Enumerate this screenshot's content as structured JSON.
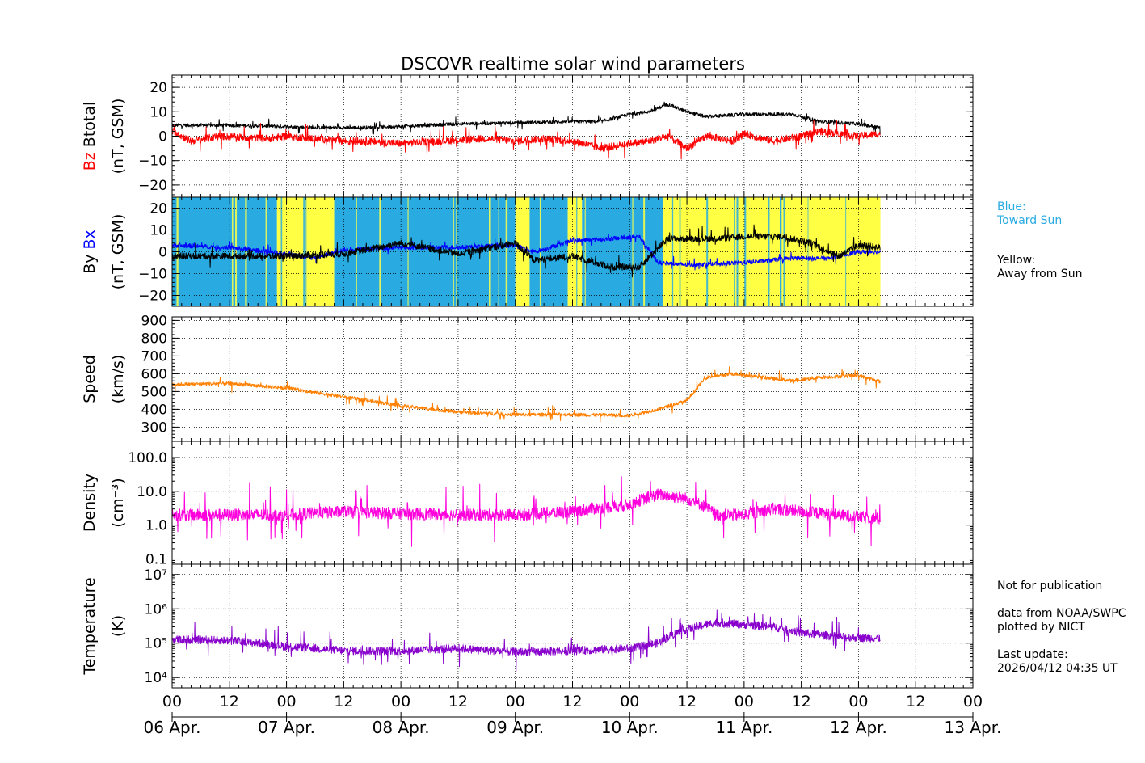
{
  "colors": {
    "bz": "#ff0000",
    "btotal": "#000000",
    "bx": "#0000ff",
    "by": "#000000",
    "toward_sun": "#29abe2",
    "away_sun": "#ffff44",
    "speed": "#ff8000",
    "density": "#ff00dd",
    "temperature": "#8800cc"
  },
  "notes": {
    "blue_title": "Blue:",
    "blue_text": "Toward Sun",
    "yellow_title": "Yellow:",
    "yellow_text": "Away from Sun",
    "not_for_pub": "Not for publication",
    "source1": "data from NOAA/SWPC",
    "source2": "plotted by NICT",
    "update_label": "Last update:",
    "update_time": "2026/04/12 04:35 UT"
  },
  "chart_data": {
    "type": "line",
    "title": "DSCOVR realtime solar wind parameters",
    "x_unit": "hours since 06 Apr. 00 UT",
    "x_range": [
      0,
      168
    ],
    "data_end_hour": 148.6,
    "hour_ticks": [
      {
        "h": 0,
        "label": "00"
      },
      {
        "h": 12,
        "label": "12"
      },
      {
        "h": 24,
        "label": "00"
      },
      {
        "h": 36,
        "label": "12"
      },
      {
        "h": 48,
        "label": "00"
      },
      {
        "h": 60,
        "label": "12"
      },
      {
        "h": 72,
        "label": "00"
      },
      {
        "h": 84,
        "label": "12"
      },
      {
        "h": 96,
        "label": "00"
      },
      {
        "h": 108,
        "label": "12"
      },
      {
        "h": 120,
        "label": "00"
      },
      {
        "h": 132,
        "label": "12"
      },
      {
        "h": 144,
        "label": "00"
      },
      {
        "h": 156,
        "label": "12"
      },
      {
        "h": 168,
        "label": "00"
      }
    ],
    "day_ticks": [
      {
        "h": 0,
        "label": "06 Apr."
      },
      {
        "h": 24,
        "label": "07 Apr."
      },
      {
        "h": 48,
        "label": "08 Apr."
      },
      {
        "h": 72,
        "label": "09 Apr."
      },
      {
        "h": 96,
        "label": "10 Apr."
      },
      {
        "h": 120,
        "label": "11 Apr."
      },
      {
        "h": 144,
        "label": "12 Apr."
      },
      {
        "h": 168,
        "label": "13 Apr."
      }
    ],
    "panels": [
      {
        "id": "btotal-bz",
        "ylabel_parts": [
          "Bz",
          "Btotal"
        ],
        "yunit": "(nT, GSM)",
        "scale": "linear",
        "ylim": [
          -25,
          25
        ],
        "yticks": [
          {
            "v": 20,
            "label": "20"
          },
          {
            "v": 10,
            "label": "10"
          },
          {
            "v": 0,
            "label": "0"
          },
          {
            "v": -10,
            "label": "−10"
          },
          {
            "v": -20,
            "label": "−20"
          }
        ],
        "series": [
          {
            "name": "Btotal",
            "color_key": "btotal",
            "knots": [
              [
                0,
                4.5
              ],
              [
                10,
                4.5
              ],
              [
                20,
                4.2
              ],
              [
                30,
                3.5
              ],
              [
                40,
                3.5
              ],
              [
                48,
                4
              ],
              [
                60,
                5
              ],
              [
                72,
                5.5
              ],
              [
                84,
                6
              ],
              [
                90,
                6
              ],
              [
                96,
                9
              ],
              [
                100,
                10
              ],
              [
                104,
                13
              ],
              [
                108,
                10
              ],
              [
                112,
                8
              ],
              [
                120,
                9
              ],
              [
                130,
                9
              ],
              [
                136,
                6
              ],
              [
                144,
                5
              ],
              [
                148.6,
                3.5
              ]
            ],
            "noise": 0.7,
            "spike": 2.5
          },
          {
            "name": "Bz",
            "color_key": "bz",
            "knots": [
              [
                0,
                2
              ],
              [
                4,
                -2
              ],
              [
                10,
                0
              ],
              [
                20,
                -1
              ],
              [
                24,
                0
              ],
              [
                30,
                -1
              ],
              [
                36,
                -2
              ],
              [
                40,
                -2
              ],
              [
                48,
                -3
              ],
              [
                56,
                -2
              ],
              [
                66,
                -1
              ],
              [
                72,
                -2
              ],
              [
                78,
                -1
              ],
              [
                84,
                -2
              ],
              [
                90,
                -5
              ],
              [
                96,
                -3
              ],
              [
                100,
                -2
              ],
              [
                104,
                0
              ],
              [
                108,
                -5
              ],
              [
                112,
                0
              ],
              [
                118,
                -2
              ],
              [
                120,
                1
              ],
              [
                126,
                -2
              ],
              [
                132,
                0
              ],
              [
                136,
                2
              ],
              [
                144,
                0
              ],
              [
                148.6,
                1
              ]
            ],
            "noise": 1.5,
            "spike": 5
          }
        ]
      },
      {
        "id": "bx-by",
        "ylabel_parts": [
          "By",
          "Bx"
        ],
        "yunit": "(nT, GSM)",
        "scale": "linear",
        "ylim": [
          -25,
          25
        ],
        "yticks": [
          {
            "v": 20,
            "label": "20"
          },
          {
            "v": 10,
            "label": "10"
          },
          {
            "v": 0,
            "label": "0"
          },
          {
            "v": -10,
            "label": "−10"
          },
          {
            "v": -20,
            "label": "−20"
          }
        ],
        "sector_bands": [
          {
            "from": 0,
            "to": 22,
            "sector": "toward"
          },
          {
            "from": 22,
            "to": 34,
            "sector": "away"
          },
          {
            "from": 34,
            "to": 72,
            "sector": "toward"
          },
          {
            "from": 72,
            "to": 75,
            "sector": "away"
          },
          {
            "from": 75,
            "to": 83,
            "sector": "toward"
          },
          {
            "from": 83,
            "to": 86,
            "sector": "away"
          },
          {
            "from": 86,
            "to": 103,
            "sector": "toward"
          },
          {
            "from": 103,
            "to": 148.6,
            "sector": "away"
          }
        ],
        "series": [
          {
            "name": "Bx",
            "color_key": "bx",
            "knots": [
              [
                0,
                3
              ],
              [
                12,
                2
              ],
              [
                24,
                -1
              ],
              [
                30,
                -3
              ],
              [
                36,
                1
              ],
              [
                48,
                2
              ],
              [
                60,
                2
              ],
              [
                72,
                3
              ],
              [
                76,
                0
              ],
              [
                84,
                5
              ],
              [
                92,
                6
              ],
              [
                98,
                7
              ],
              [
                102,
                -5
              ],
              [
                108,
                -6
              ],
              [
                120,
                -5
              ],
              [
                130,
                -3
              ],
              [
                138,
                -3
              ],
              [
                144,
                0
              ],
              [
                148.6,
                0
              ]
            ],
            "noise": 1.0,
            "spike": 2.5
          },
          {
            "name": "By",
            "color_key": "by",
            "knots": [
              [
                0,
                -2
              ],
              [
                12,
                -2
              ],
              [
                24,
                -2
              ],
              [
                36,
                -1
              ],
              [
                48,
                4
              ],
              [
                60,
                -1
              ],
              [
                72,
                4
              ],
              [
                76,
                -4
              ],
              [
                84,
                -2
              ],
              [
                92,
                -7
              ],
              [
                98,
                -7
              ],
              [
                104,
                6
              ],
              [
                108,
                6
              ],
              [
                114,
                6
              ],
              [
                120,
                7
              ],
              [
                128,
                7
              ],
              [
                134,
                4
              ],
              [
                140,
                -2
              ],
              [
                144,
                3
              ],
              [
                148.6,
                2
              ]
            ],
            "noise": 1.5,
            "spike": 5
          }
        ]
      },
      {
        "id": "speed",
        "ylabel_parts": [
          "Speed"
        ],
        "yunit": "(km/s)",
        "scale": "linear",
        "ylim": [
          220,
          920
        ],
        "yticks": [
          {
            "v": 900,
            "label": "900"
          },
          {
            "v": 800,
            "label": "800"
          },
          {
            "v": 700,
            "label": "700"
          },
          {
            "v": 600,
            "label": "600"
          },
          {
            "v": 500,
            "label": "500"
          },
          {
            "v": 400,
            "label": "400"
          },
          {
            "v": 300,
            "label": "300"
          }
        ],
        "series": [
          {
            "name": "Speed",
            "color_key": "speed",
            "knots": [
              [
                0,
                540
              ],
              [
                12,
                545
              ],
              [
                24,
                520
              ],
              [
                36,
                470
              ],
              [
                48,
                420
              ],
              [
                60,
                385
              ],
              [
                72,
                370
              ],
              [
                84,
                370
              ],
              [
                96,
                365
              ],
              [
                102,
                400
              ],
              [
                108,
                450
              ],
              [
                112,
                580
              ],
              [
                118,
                600
              ],
              [
                124,
                580
              ],
              [
                130,
                560
              ],
              [
                136,
                580
              ],
              [
                144,
                590
              ],
              [
                148.6,
                555
              ]
            ],
            "noise": 10,
            "spike": 45
          }
        ]
      },
      {
        "id": "density",
        "ylabel_parts": [
          "Density"
        ],
        "yunit": "(cm⁻³)",
        "scale": "log",
        "ylim": [
          0.07,
          300
        ],
        "yticks": [
          {
            "v": 100,
            "label": "100.0"
          },
          {
            "v": 10,
            "label": "10.0"
          },
          {
            "v": 1,
            "label": "1.0"
          },
          {
            "v": 0.1,
            "label": "0.1"
          }
        ],
        "series": [
          {
            "name": "Density",
            "color_key": "density",
            "knots": [
              [
                0,
                2
              ],
              [
                12,
                2
              ],
              [
                24,
                2
              ],
              [
                36,
                2.5
              ],
              [
                48,
                2.2
              ],
              [
                60,
                2
              ],
              [
                72,
                2
              ],
              [
                84,
                2.5
              ],
              [
                96,
                4
              ],
              [
                102,
                8
              ],
              [
                108,
                6
              ],
              [
                114,
                2
              ],
              [
                120,
                2
              ],
              [
                126,
                3
              ],
              [
                132,
                2.5
              ],
              [
                140,
                2
              ],
              [
                148.6,
                1.5
              ]
            ],
            "noise": 0.18,
            "spike": 0.8
          }
        ]
      },
      {
        "id": "temperature",
        "ylabel_parts": [
          "Temperature"
        ],
        "yunit": "(K)",
        "scale": "log",
        "ylim": [
          5000,
          20000000
        ],
        "yticks": [
          {
            "v": 10000000,
            "label": "10⁷"
          },
          {
            "v": 1000000,
            "label": "10⁶"
          },
          {
            "v": 100000,
            "label": "10⁵"
          },
          {
            "v": 10000,
            "label": "10⁴"
          }
        ],
        "series": [
          {
            "name": "Temperature",
            "color_key": "temperature",
            "knots": [
              [
                0,
                130000
              ],
              [
                12,
                120000
              ],
              [
                24,
                80000
              ],
              [
                36,
                60000
              ],
              [
                48,
                60000
              ],
              [
                60,
                70000
              ],
              [
                72,
                55000
              ],
              [
                84,
                60000
              ],
              [
                96,
                70000
              ],
              [
                102,
                100000
              ],
              [
                108,
                250000
              ],
              [
                114,
                400000
              ],
              [
                120,
                350000
              ],
              [
                126,
                300000
              ],
              [
                132,
                200000
              ],
              [
                140,
                150000
              ],
              [
                148.6,
                140000
              ]
            ],
            "noise": 0.12,
            "spike": 0.5
          }
        ]
      }
    ]
  }
}
